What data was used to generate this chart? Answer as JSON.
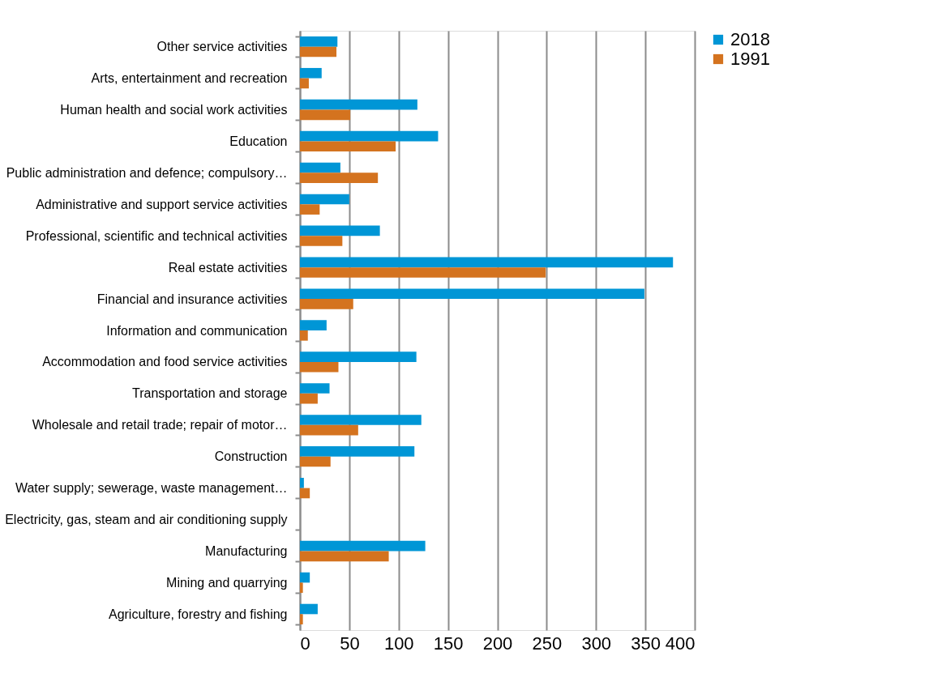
{
  "chart_data": {
    "type": "bar",
    "orientation": "horizontal",
    "categories": [
      "Other service activities",
      "Arts, entertainment and recreation",
      "Human health and social work activities",
      "Education",
      "Public administration and defence; compulsory…",
      "Administrative and support service activities",
      "Professional, scientific and technical activities",
      "Real estate activities",
      "Financial and insurance activities",
      "Information and communication",
      "Accommodation and food service activities",
      "Transportation and storage",
      "Wholesale and retail trade; repair of motor…",
      "Construction",
      "Water supply; sewerage, waste management…",
      "Electricity, gas, steam and air conditioning supply",
      "Manufacturing",
      "Mining and quarrying",
      "Agriculture, forestry and fishing"
    ],
    "series": [
      {
        "name": "2018",
        "color": "#0096d6",
        "values": [
          38,
          22,
          119,
          140,
          41,
          50,
          81,
          378,
          349,
          27,
          118,
          30,
          123,
          116,
          4,
          0,
          127,
          10,
          18
        ]
      },
      {
        "name": "1991",
        "color": "#d4731f",
        "values": [
          37,
          9,
          51,
          97,
          79,
          20,
          43,
          249,
          54,
          8,
          39,
          18,
          59,
          31,
          10,
          0,
          90,
          3,
          3
        ]
      }
    ],
    "xlim": [
      0,
      400
    ],
    "xticks": [
      0,
      50,
      100,
      150,
      200,
      250,
      300,
      350,
      400
    ],
    "grid": "x",
    "legend": "right"
  }
}
